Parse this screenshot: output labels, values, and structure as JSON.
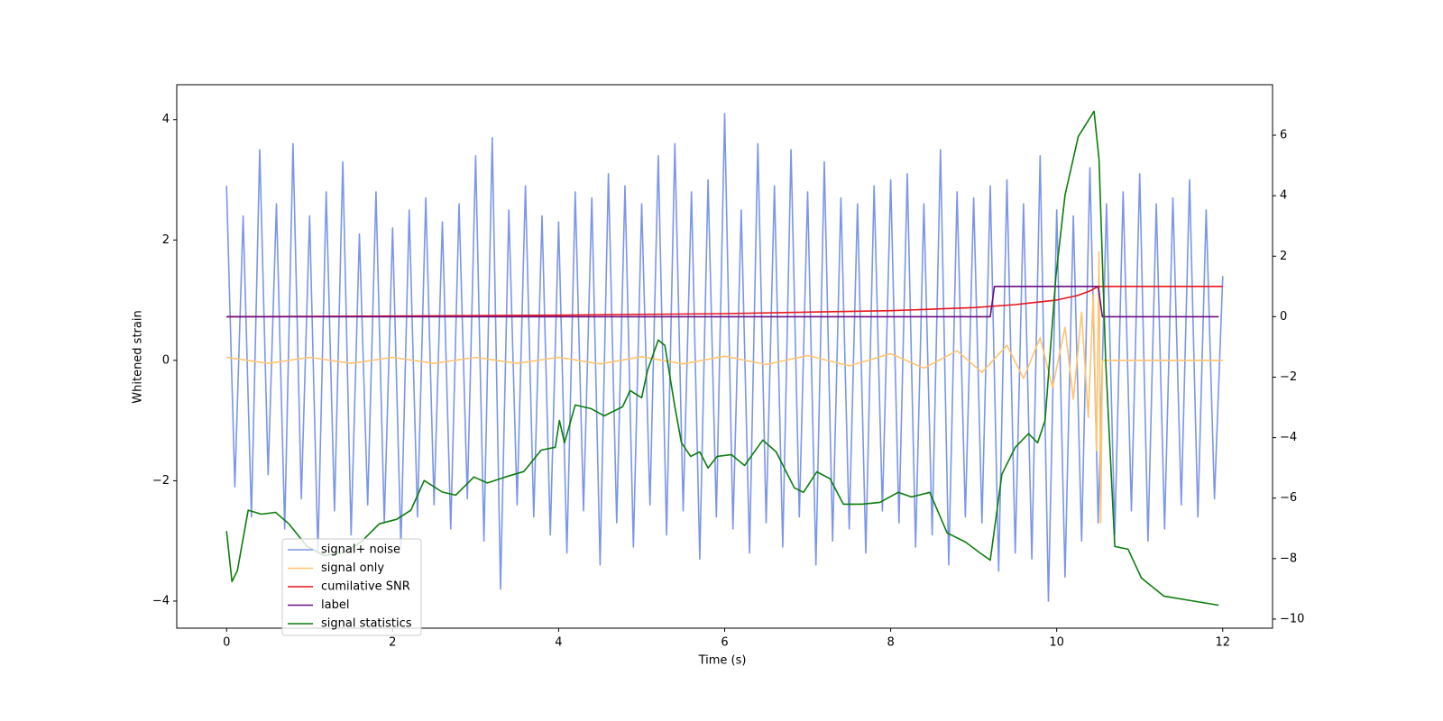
{
  "chart_data": {
    "type": "line",
    "xlabel": "Time (s)",
    "ylabel": "Whitened strain",
    "xlim": [
      -0.6,
      12.6
    ],
    "xticks": [
      0,
      2,
      4,
      6,
      8,
      10,
      12
    ],
    "ylim": [
      -4.45,
      4.58
    ],
    "yticks": [
      {
        "value": -4,
        "label": "−4"
      },
      {
        "value": -2,
        "label": "−2"
      },
      0,
      2,
      4
    ],
    "y2lim": [
      -10.3,
      7.67
    ],
    "y2ticks": [
      {
        "value": -10,
        "label": "−10"
      },
      {
        "value": -8,
        "label": "−8"
      },
      {
        "value": -6,
        "label": "−6"
      },
      {
        "value": -4,
        "label": "−4"
      },
      {
        "value": -2,
        "label": "−2"
      },
      0,
      2,
      4,
      6
    ],
    "legend": "lower left",
    "series": [
      {
        "name": "signal+ noise",
        "color": "#7b96e8",
        "x": [
          0,
          0.1,
          0.2,
          0.3,
          0.4,
          0.5,
          0.6,
          0.7,
          0.8,
          0.9,
          1,
          1.1,
          1.2,
          1.3,
          1.4,
          1.5,
          1.6,
          1.7,
          1.8,
          1.9,
          2,
          2.1,
          2.2,
          2.3,
          2.4,
          2.5,
          2.6,
          2.7,
          2.8,
          2.9,
          3,
          3.1,
          3.2,
          3.3,
          3.4,
          3.5,
          3.6,
          3.7,
          3.8,
          3.9,
          4,
          4.1,
          4.2,
          4.3,
          4.4,
          4.5,
          4.6,
          4.7,
          4.8,
          4.9,
          5,
          5.1,
          5.2,
          5.3,
          5.4,
          5.5,
          5.6,
          5.7,
          5.8,
          5.9,
          6,
          6.1,
          6.2,
          6.3,
          6.4,
          6.5,
          6.6,
          6.7,
          6.8,
          6.9,
          7,
          7.1,
          7.2,
          7.3,
          7.4,
          7.5,
          7.6,
          7.7,
          7.8,
          7.9,
          8,
          8.1,
          8.2,
          8.3,
          8.4,
          8.5,
          8.6,
          8.7,
          8.8,
          8.9,
          9,
          9.1,
          9.2,
          9.3,
          9.4,
          9.5,
          9.6,
          9.7,
          9.8,
          9.9,
          10,
          10.1,
          10.2,
          10.3,
          10.4,
          10.5,
          10.6,
          10.7,
          10.8,
          10.9,
          11,
          11.1,
          11.2,
          11.3,
          11.4,
          11.5,
          11.6,
          11.7,
          11.8,
          11.9,
          12
        ],
        "values": [
          2.9,
          -2.1,
          2.4,
          -2.6,
          3.5,
          -1.9,
          2.6,
          -2.8,
          3.6,
          -2.3,
          2.4,
          -3.2,
          2.8,
          -2.5,
          3.3,
          -2.9,
          2.1,
          -2.4,
          2.8,
          -2.7,
          2.2,
          -3.1,
          2.5,
          -2.6,
          2.7,
          -2.4,
          2.3,
          -2.8,
          2.6,
          -2.3,
          3.4,
          -3.0,
          3.7,
          -3.8,
          2.5,
          -2.4,
          2.9,
          -2.6,
          2.4,
          -2.9,
          2.3,
          -3.2,
          2.8,
          -2.5,
          2.7,
          -3.4,
          3.1,
          -2.7,
          2.9,
          -3.1,
          2.6,
          -2.4,
          3.4,
          -2.9,
          3.6,
          -2.5,
          2.8,
          -3.3,
          3.0,
          -2.6,
          4.1,
          -2.8,
          2.5,
          -3.2,
          3.6,
          -2.7,
          2.9,
          -3.1,
          3.5,
          -2.6,
          2.8,
          -3.4,
          3.3,
          -3.0,
          2.7,
          -2.8,
          2.6,
          -3.2,
          2.9,
          -2.5,
          3.0,
          -2.7,
          3.1,
          -3.1,
          2.6,
          -2.9,
          3.5,
          -3.4,
          2.8,
          -2.6,
          2.7,
          -2.7,
          2.9,
          -3.5,
          3.0,
          -3.2,
          2.6,
          -3.3,
          3.4,
          -4.0,
          2.5,
          -3.6,
          2.4,
          -3.0,
          3.2,
          -2.7,
          2.6,
          -2.9,
          2.8,
          -2.5,
          3.1,
          -3.0,
          2.6,
          -2.8,
          2.7,
          -2.4,
          3.0,
          -2.6,
          2.5,
          -2.3,
          1.4
        ]
      },
      {
        "name": "signal only",
        "color": "#ffc46e",
        "x": [
          0,
          0.5,
          1,
          1.5,
          2,
          2.5,
          3,
          3.5,
          4,
          4.5,
          5,
          5.5,
          6,
          6.5,
          7,
          7.5,
          8,
          8.4,
          8.8,
          9.1,
          9.4,
          9.6,
          9.8,
          9.95,
          10.1,
          10.2,
          10.3,
          10.38,
          10.44,
          10.48,
          10.51,
          10.53,
          10.55,
          10.6,
          12
        ],
        "values": [
          0.05,
          -0.05,
          0.05,
          -0.05,
          0.05,
          -0.05,
          0.05,
          -0.05,
          0.05,
          -0.06,
          0.06,
          -0.06,
          0.07,
          -0.07,
          0.08,
          -0.09,
          0.11,
          -0.13,
          0.16,
          -0.2,
          0.25,
          -0.3,
          0.38,
          -0.45,
          0.55,
          -0.65,
          0.8,
          -0.95,
          1.1,
          -1.5,
          1.8,
          -2.7,
          0,
          0,
          0
        ]
      },
      {
        "name": "cumilative SNR",
        "color": "#e8141a",
        "axis": "y2",
        "x": [
          0,
          2,
          4,
          6,
          8,
          9,
          9.5,
          10,
          10.25,
          10.4,
          10.5,
          10.55,
          12
        ],
        "values": [
          0,
          0.02,
          0.05,
          0.1,
          0.2,
          0.3,
          0.4,
          0.55,
          0.7,
          0.85,
          1.0,
          1.0,
          1.0
        ]
      },
      {
        "name": "label",
        "color": "#6a0f80",
        "axis": "y2",
        "x": [
          0,
          9.2,
          9.25,
          10.5,
          10.55,
          11.95
        ],
        "values": [
          0,
          0,
          1,
          1,
          0,
          0
        ]
      },
      {
        "name": "signal statistics",
        "color": "#0b7d0b",
        "axis": "y2",
        "x": [
          0,
          0.065,
          0.13,
          0.26,
          0.42,
          0.59,
          0.75,
          0.97,
          1.18,
          1.4,
          1.62,
          1.84,
          2.05,
          2.22,
          2.38,
          2.6,
          2.76,
          2.98,
          3.14,
          3.36,
          3.58,
          3.79,
          3.96,
          4.01,
          4.07,
          4.2,
          4.39,
          4.55,
          4.77,
          4.86,
          5.0,
          5.07,
          5.2,
          5.28,
          5.4,
          5.48,
          5.59,
          5.7,
          5.8,
          5.91,
          6.08,
          6.24,
          6.46,
          6.62,
          6.84,
          6.95,
          7.11,
          7.27,
          7.43,
          7.65,
          7.87,
          8.09,
          8.25,
          8.47,
          8.68,
          8.9,
          9.07,
          9.2,
          9.34,
          9.5,
          9.66,
          9.77,
          9.86,
          9.99,
          10.1,
          10.26,
          10.45,
          10.51,
          10.59,
          10.7,
          10.86,
          11.02,
          11.29,
          11.62,
          11.95
        ],
        "values": [
          -7.09,
          -8.76,
          -8.4,
          -6.4,
          -6.53,
          -6.47,
          -6.85,
          -7.6,
          -7.9,
          -7.8,
          -7.45,
          -6.85,
          -6.7,
          -6.4,
          -5.42,
          -5.8,
          -5.9,
          -5.3,
          -5.5,
          -5.3,
          -5.12,
          -4.41,
          -4.32,
          -3.43,
          -4.17,
          -2.92,
          -3.04,
          -3.28,
          -2.98,
          -2.44,
          -2.68,
          -1.79,
          -0.77,
          -0.95,
          -2.98,
          -4.17,
          -4.62,
          -4.47,
          -5.0,
          -4.62,
          -4.56,
          -4.92,
          -4.08,
          -4.47,
          -5.66,
          -5.81,
          -5.13,
          -5.36,
          -6.2,
          -6.2,
          -6.14,
          -5.81,
          -5.96,
          -5.81,
          -7.15,
          -7.45,
          -7.8,
          -8.05,
          -5.21,
          -4.32,
          -3.87,
          -4.17,
          -3.43,
          1.34,
          4.02,
          5.96,
          6.79,
          5.21,
          -1.49,
          -7.6,
          -7.69,
          -8.64,
          -9.24,
          -9.39,
          -9.54
        ]
      }
    ]
  }
}
